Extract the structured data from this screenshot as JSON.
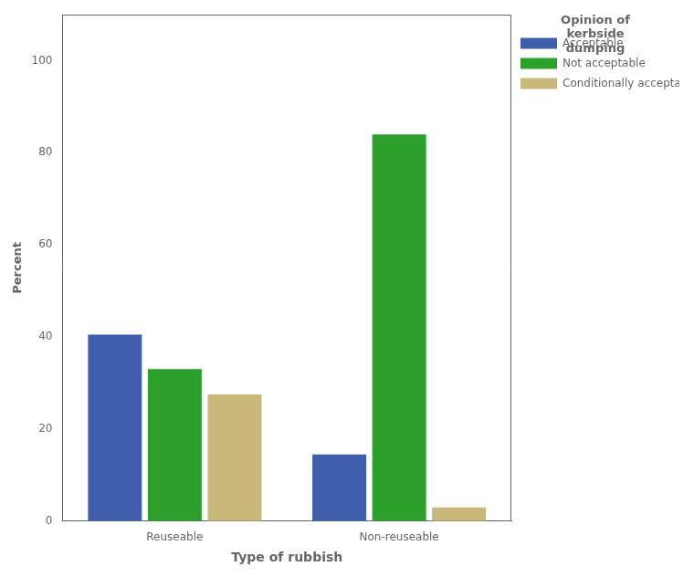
{
  "chart_data": {
    "type": "bar",
    "categories": [
      "Reuseable",
      "Non-reuseable"
    ],
    "series": [
      {
        "name": "Acceptable",
        "color": "#3f5fac",
        "values": [
          40.5,
          14.5
        ]
      },
      {
        "name": "Not acceptable",
        "color": "#2da02c",
        "values": [
          33.0,
          84.0
        ]
      },
      {
        "name": "Conditionally acceptable",
        "color": "#c8b87a",
        "values": [
          27.5,
          3.0
        ]
      }
    ],
    "legend_title": "Opinion of\nkerbside\ndumping",
    "xlabel": "Type of rubbish",
    "ylabel": "Percent",
    "ylim": [
      0,
      110
    ],
    "yticks": [
      0,
      20,
      40,
      60,
      80,
      100
    ],
    "grid": false,
    "legend": "right"
  }
}
